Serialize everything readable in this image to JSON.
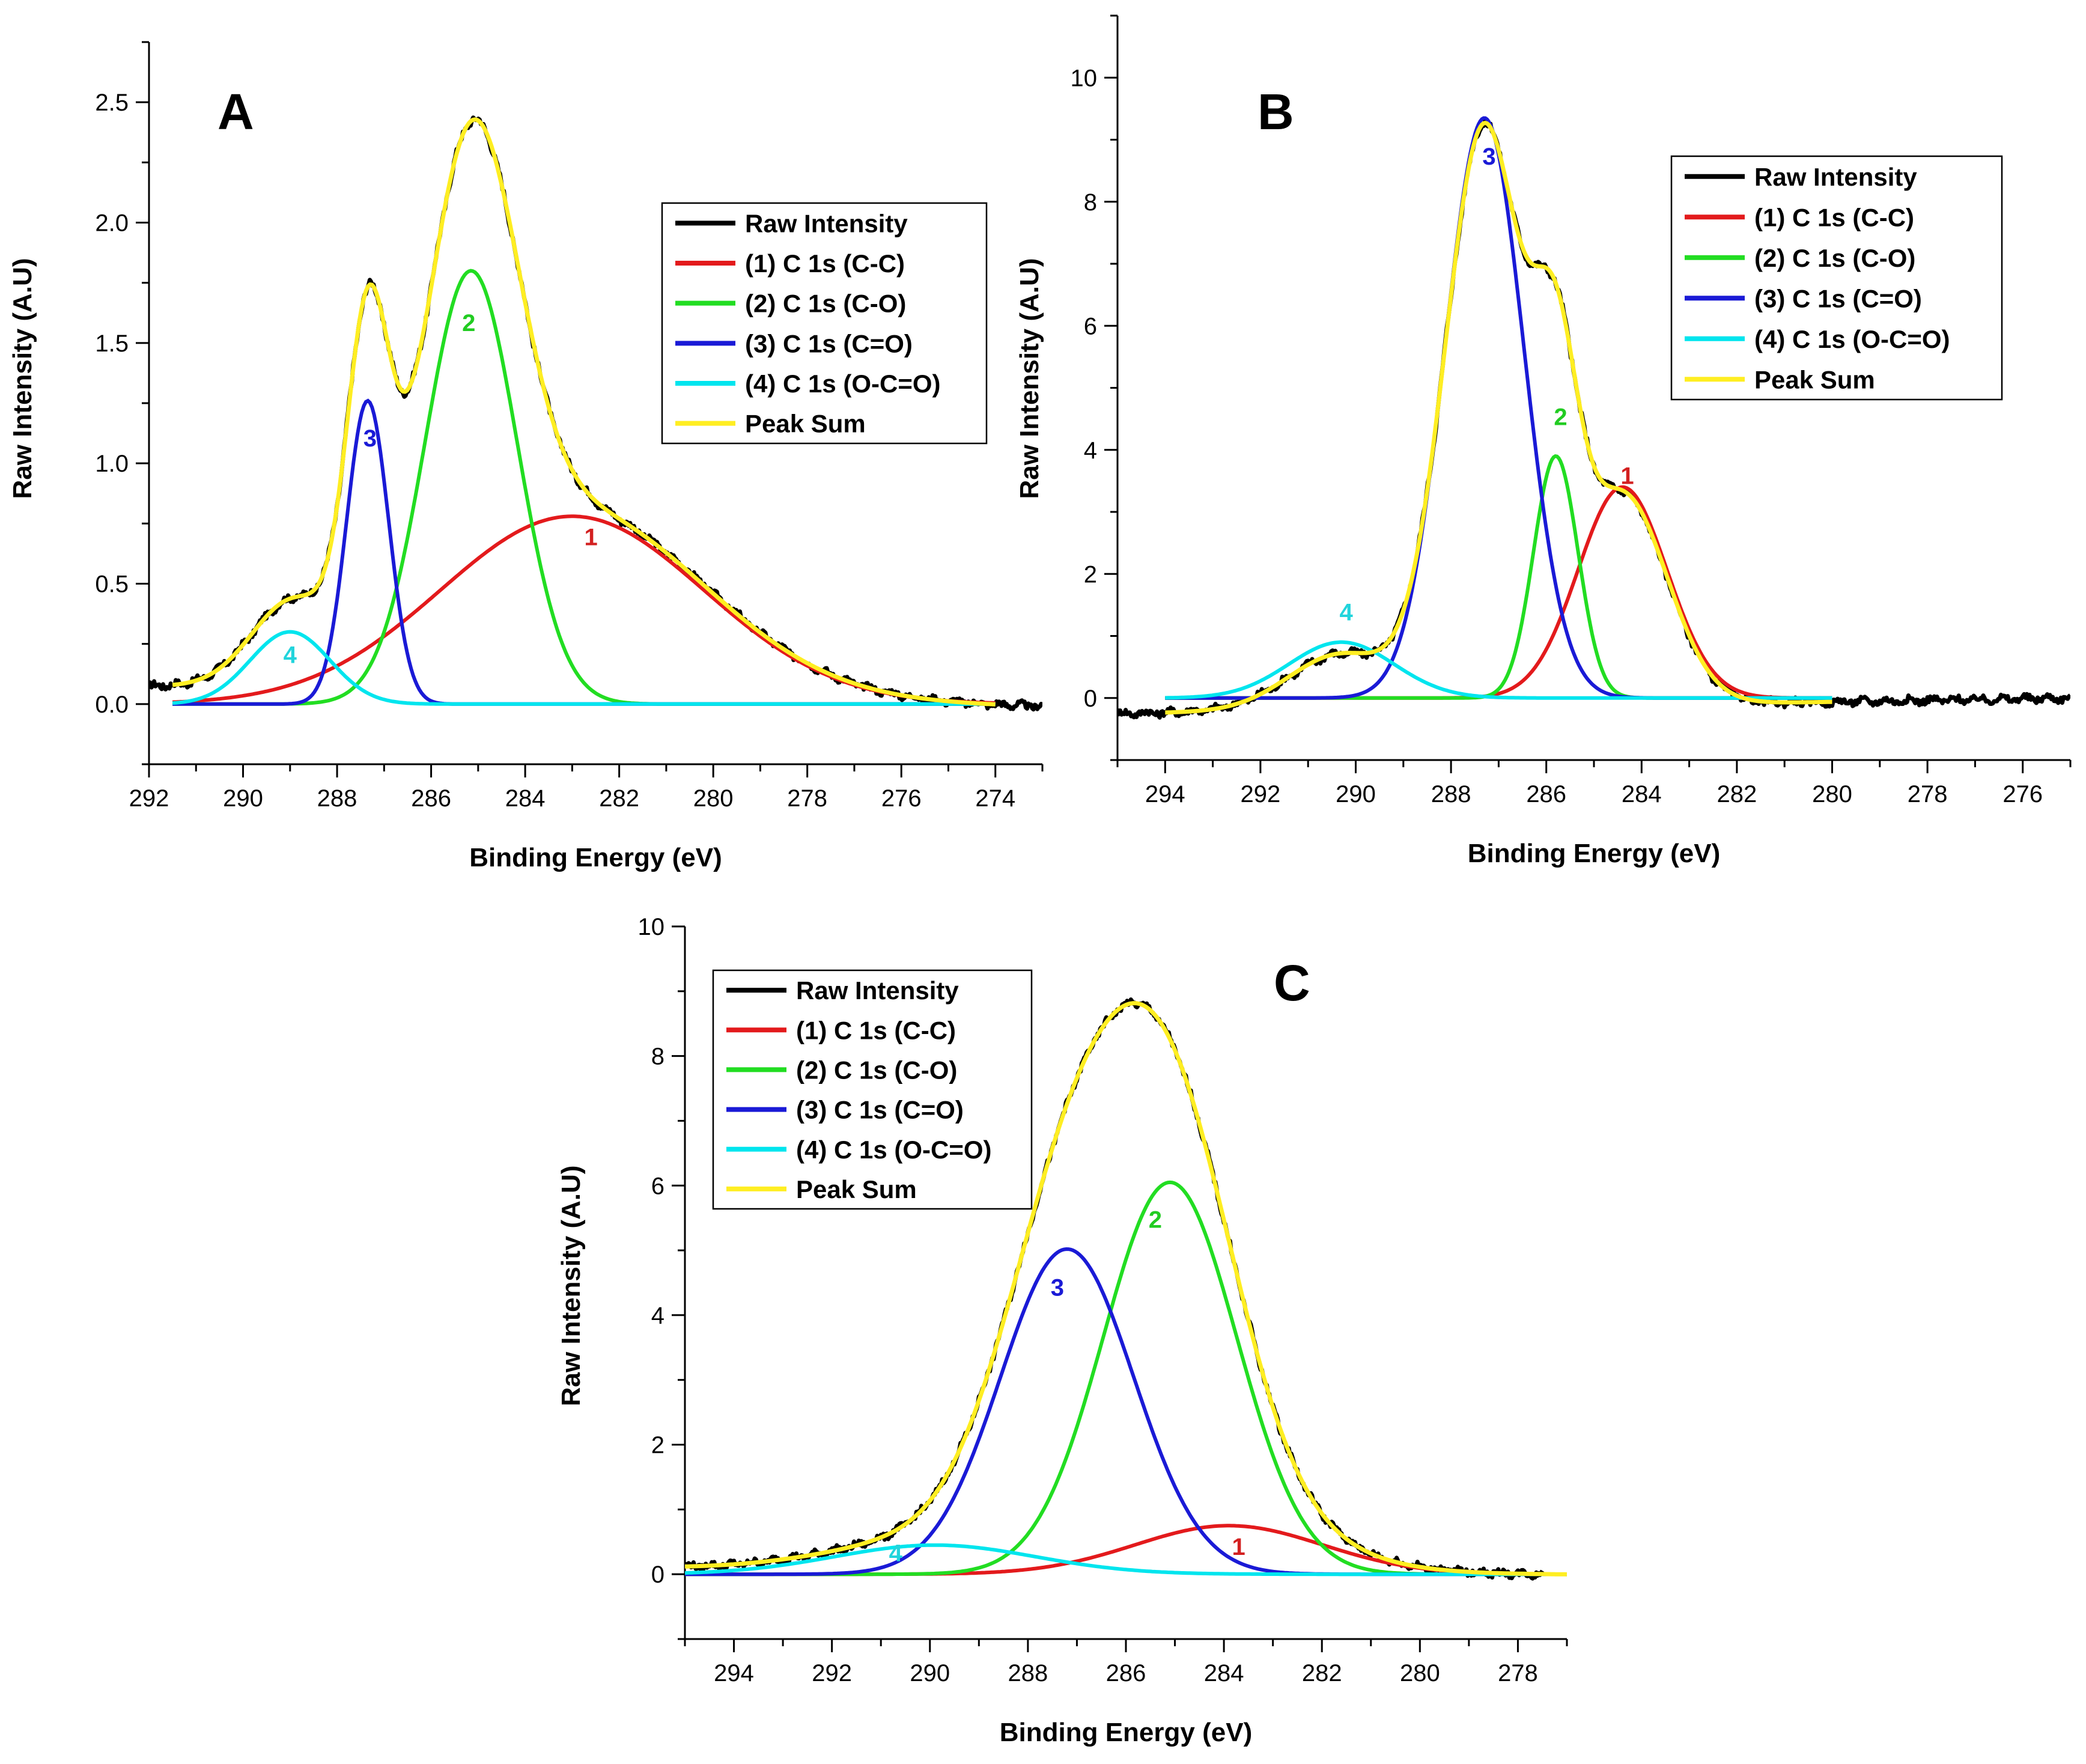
{
  "chart_data": [
    {
      "panel": "A",
      "type": "line",
      "xlabel": "Binding Energy (eV)",
      "ylabel": "Raw Intensity (A.U)",
      "xlim": [
        292,
        273
      ],
      "ylim": [
        -0.25,
        2.75
      ],
      "xticks": [
        292,
        290,
        288,
        286,
        284,
        282,
        280,
        278,
        276,
        274
      ],
      "yticks": [
        0.0,
        0.5,
        1.0,
        1.5,
        2.0,
        2.5
      ],
      "ytick_labels": [
        "0.0",
        "0.5",
        "1.0",
        "1.5",
        "2.0",
        "2.5"
      ],
      "legend": [
        "Raw Intensity",
        "(1) C 1s (C-C)",
        "(2) C 1s (C-O)",
        "(3) C 1s (C=O)",
        "(4) C 1s (O-C=O)",
        "Peak Sum"
      ],
      "legend_position": "top-right",
      "fit_range": [
        291.5,
        274
      ],
      "raw_range": [
        292,
        273
      ],
      "baseline": [
        0.07,
        -0.01
      ],
      "peaks": [
        {
          "id": "1",
          "name": "(1) C 1s (C-C)",
          "center": 283.0,
          "height": 0.78,
          "fwhm": 6.6
        },
        {
          "id": "2",
          "name": "(2) C 1s (C-O)",
          "center": 285.15,
          "height": 1.8,
          "fwhm": 2.3
        },
        {
          "id": "3",
          "name": "(3) C 1s (C=O)",
          "center": 287.35,
          "height": 1.26,
          "fwhm": 1.05
        },
        {
          "id": "4",
          "name": "(4) C 1s (O-C=O)",
          "center": 289.0,
          "height": 0.3,
          "fwhm": 2.0
        }
      ],
      "peak_labels": [
        {
          "text": "1",
          "x": 282.6,
          "y": 0.66
        },
        {
          "text": "2",
          "x": 285.2,
          "y": 1.55
        },
        {
          "text": "3",
          "x": 287.3,
          "y": 1.07
        },
        {
          "text": "4",
          "x": 289.0,
          "y": 0.17
        }
      ]
    },
    {
      "panel": "B",
      "type": "line",
      "xlabel": "Binding Energy (eV)",
      "ylabel": "Raw Intensity (A.U)",
      "xlim": [
        295,
        275
      ],
      "ylim": [
        -1,
        11
      ],
      "xticks": [
        294,
        292,
        290,
        288,
        286,
        284,
        282,
        280,
        278,
        276
      ],
      "yticks": [
        0,
        2,
        4,
        6,
        8,
        10
      ],
      "ytick_labels": [
        "0",
        "2",
        "4",
        "6",
        "8",
        "10"
      ],
      "legend": [
        "Raw Intensity",
        "(1) C 1s (C-C)",
        "(2) C 1s (C-O)",
        "(3) C 1s (C=O)",
        "(4) C 1s (O-C=O)",
        "Peak Sum"
      ],
      "legend_position": "top-right",
      "fit_range": [
        294,
        280
      ],
      "raw_range": [
        295,
        275
      ],
      "baseline": [
        -0.25,
        0.0
      ],
      "peaks": [
        {
          "id": "1",
          "name": "(1) C 1s (C-C)",
          "center": 284.4,
          "height": 3.4,
          "fwhm": 2.2
        },
        {
          "id": "2",
          "name": "(2) C 1s (C-O)",
          "center": 285.8,
          "height": 3.9,
          "fwhm": 1.1
        },
        {
          "id": "3",
          "name": "(3) C 1s (C=O)",
          "center": 287.3,
          "height": 9.35,
          "fwhm": 1.95
        },
        {
          "id": "4",
          "name": "(4) C 1s (O-C=O)",
          "center": 290.3,
          "height": 0.9,
          "fwhm": 2.6
        }
      ],
      "peak_labels": [
        {
          "text": "1",
          "x": 284.3,
          "y": 3.45
        },
        {
          "text": "2",
          "x": 285.7,
          "y": 4.4
        },
        {
          "text": "3",
          "x": 287.2,
          "y": 8.6
        },
        {
          "text": "4",
          "x": 290.2,
          "y": 1.25
        }
      ]
    },
    {
      "panel": "C",
      "type": "line",
      "xlabel": "Binding Energy (eV)",
      "ylabel": "Raw Intensity (A.U)",
      "xlim": [
        295,
        277
      ],
      "ylim": [
        -1,
        10
      ],
      "xticks": [
        294,
        292,
        290,
        288,
        286,
        284,
        282,
        280,
        278
      ],
      "yticks": [
        0,
        2,
        4,
        6,
        8,
        10
      ],
      "ytick_labels": [
        "0",
        "2",
        "4",
        "6",
        "8",
        "10"
      ],
      "legend": [
        "Raw Intensity",
        "(1) C 1s (C-C)",
        "(2) C 1s (C-O)",
        "(3) C 1s (C=O)",
        "(4) C 1s (O-C=O)",
        "Peak Sum"
      ],
      "legend_position": "top-left",
      "fit_range": [
        295,
        277
      ],
      "raw_range": [
        295,
        277.5
      ],
      "baseline": [
        0.1,
        0.0
      ],
      "peaks": [
        {
          "id": "1",
          "name": "(1) C 1s (C-C)",
          "center": 283.9,
          "height": 0.75,
          "fwhm": 4.5
        },
        {
          "id": "2",
          "name": "(2) C 1s (C-O)",
          "center": 285.1,
          "height": 6.05,
          "fwhm": 3.2
        },
        {
          "id": "3",
          "name": "(3) C 1s (C=O)",
          "center": 287.2,
          "height": 5.02,
          "fwhm": 3.2
        },
        {
          "id": "4",
          "name": "(4) C 1s (O-C=O)",
          "center": 289.9,
          "height": 0.45,
          "fwhm": 4.8
        }
      ],
      "peak_labels": [
        {
          "text": "1",
          "x": 283.7,
          "y": 0.3
        },
        {
          "text": "2",
          "x": 285.4,
          "y": 5.35
        },
        {
          "text": "3",
          "x": 287.4,
          "y": 4.3
        },
        {
          "text": "4",
          "x": 290.7,
          "y": 0.2
        }
      ]
    }
  ],
  "colors": {
    "raw": "#000000",
    "peak1": "#e31a1c",
    "peak2": "#22dd22",
    "peak3": "#1a1ad6",
    "peak4": "#00e5ee",
    "sum": "#ffee22",
    "label1": "#d32020",
    "label2": "#22cc22",
    "label3": "#1a1ad6",
    "label4": "#22d4dc"
  }
}
